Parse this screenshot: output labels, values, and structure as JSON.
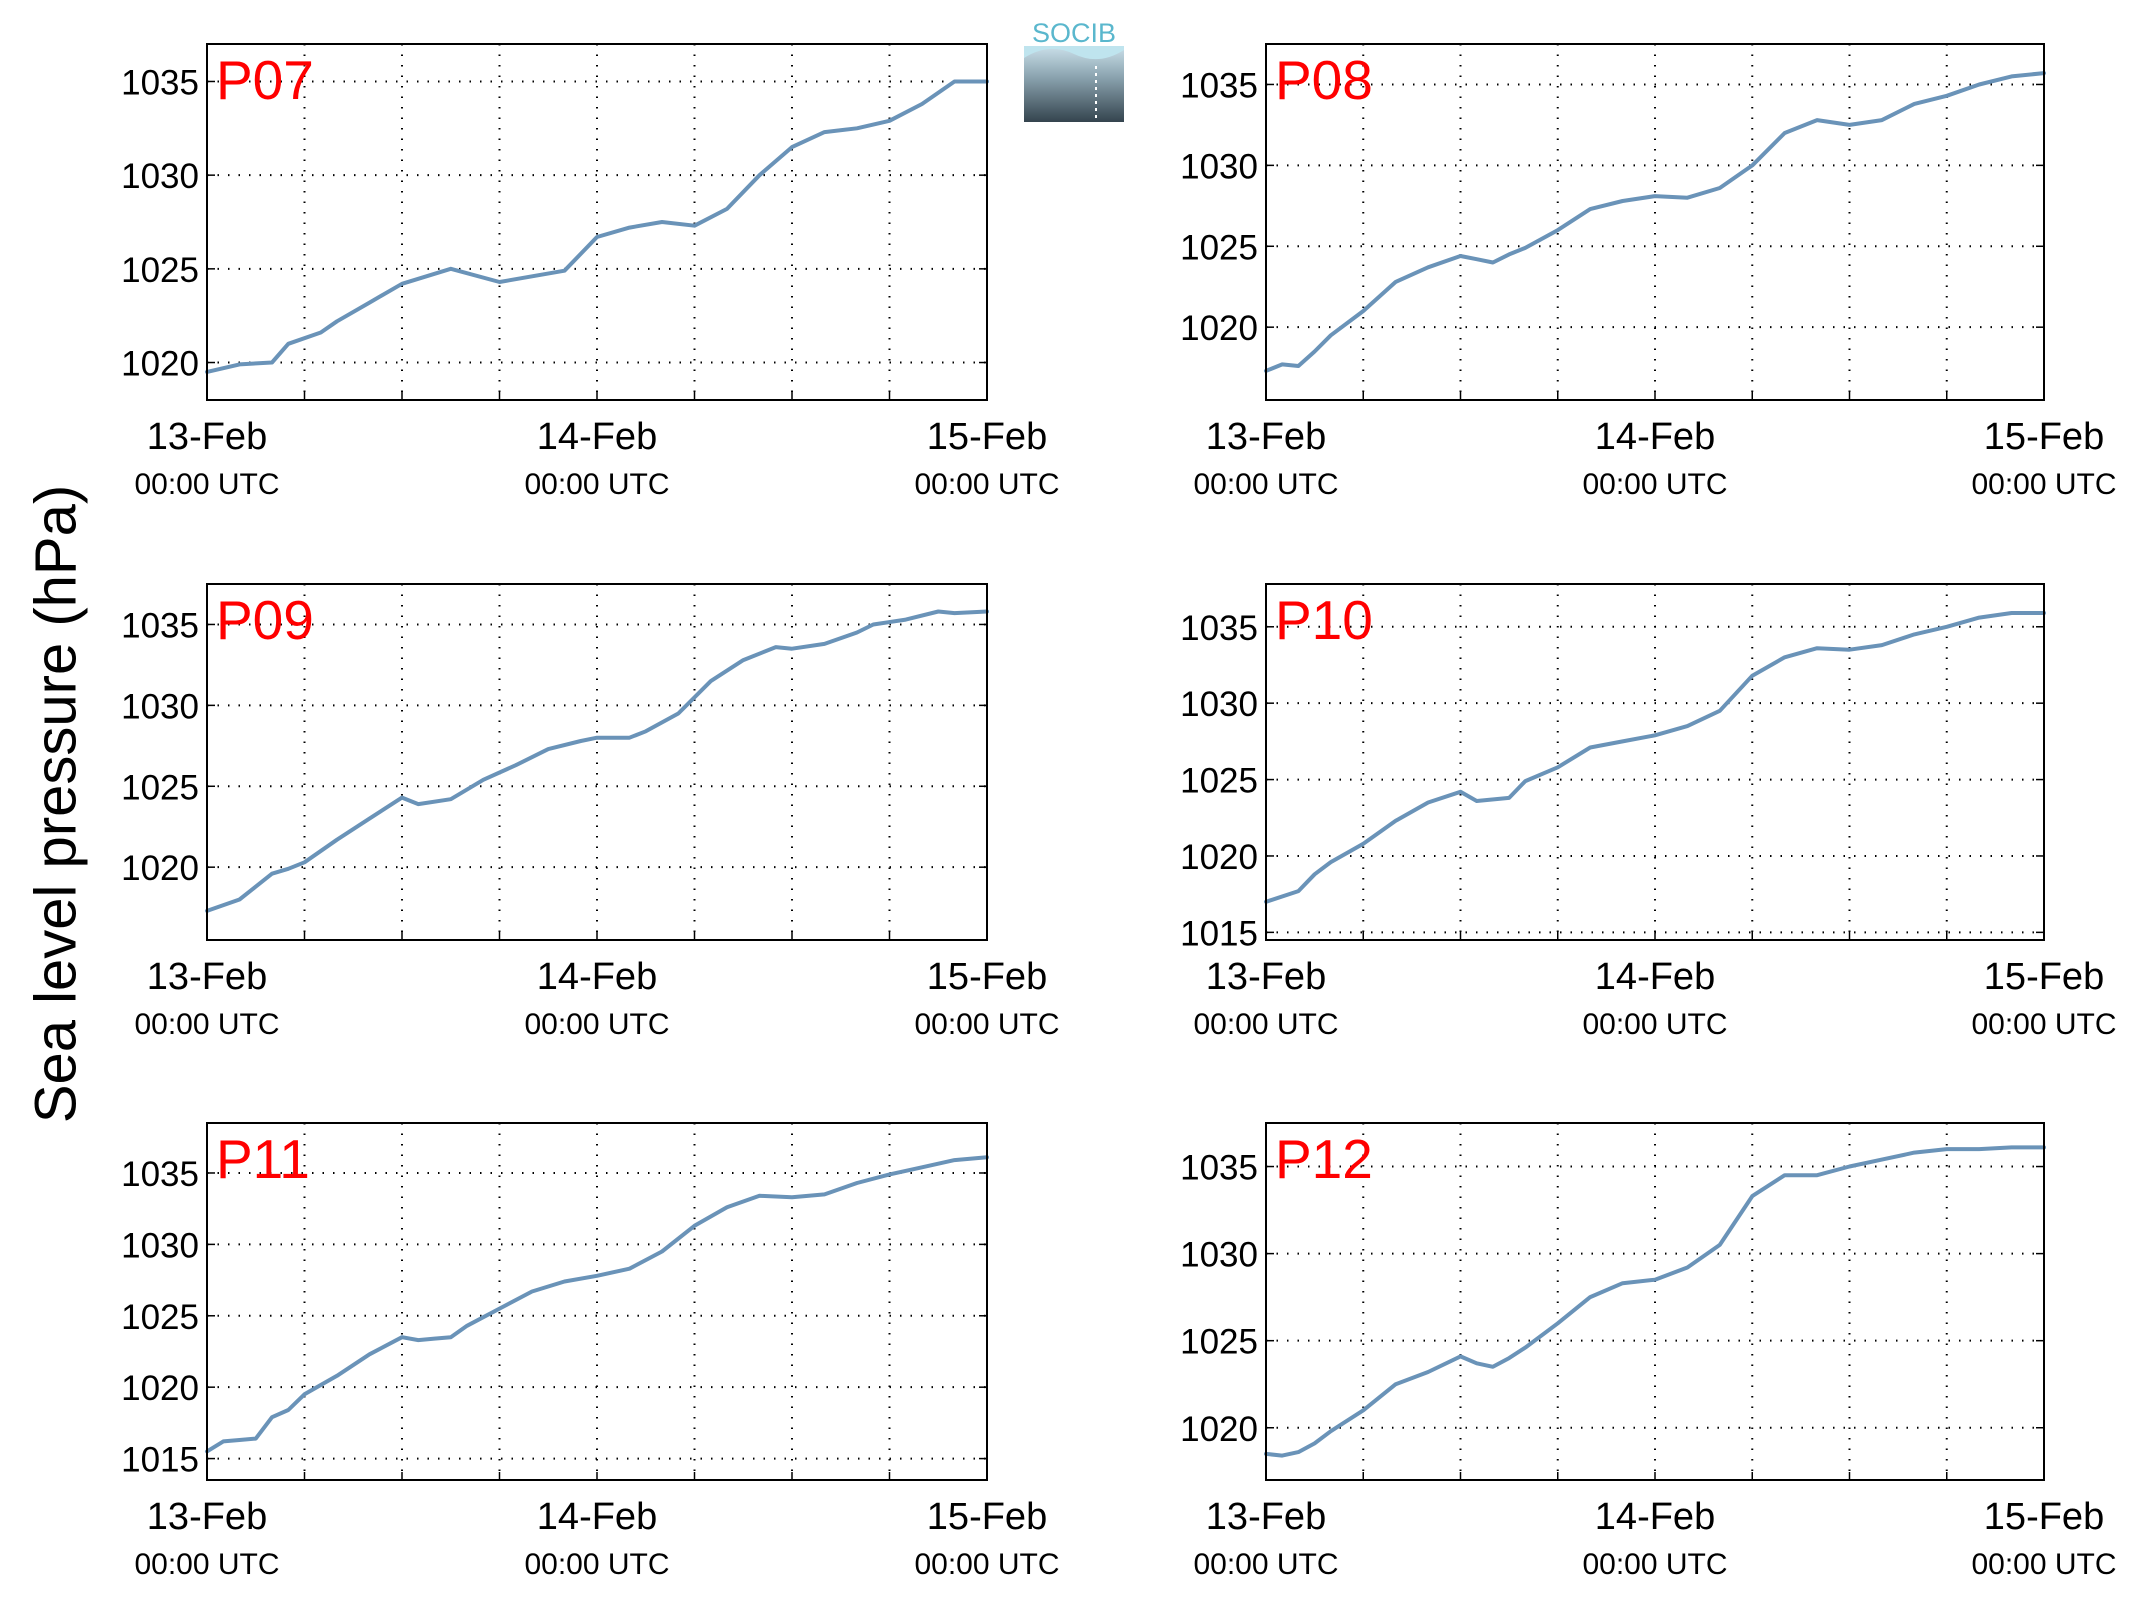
{
  "figure": {
    "y_axis_label": "Sea level pressure (hPa)",
    "logo_text": "SOCIB",
    "line_color": "#6a93b8",
    "panel_label_color": "#ff0000"
  },
  "chart_data": [
    {
      "type": "line",
      "panel_label": "P07",
      "x_ticks": [
        "13-Feb 00:00 UTC",
        "14-Feb 00:00 UTC",
        "15-Feb 00:00 UTC"
      ],
      "x_range": [
        "13-Feb 00:00 UTC",
        "15-Feb 00:00 UTC"
      ],
      "ylim": [
        1018,
        1037
      ],
      "y_ticks": [
        1020,
        1025,
        1030,
        1035
      ],
      "grid": true,
      "x_hours": [
        0,
        2,
        4,
        5,
        7,
        8,
        10,
        12,
        15,
        18,
        22,
        24,
        26,
        28,
        30,
        32,
        34,
        36,
        38,
        40,
        42,
        44,
        46,
        48
      ],
      "y": [
        1019.5,
        1019.9,
        1020.0,
        1021.0,
        1021.6,
        1022.2,
        1023.2,
        1024.2,
        1025.0,
        1024.3,
        1024.9,
        1026.7,
        1027.2,
        1027.5,
        1027.3,
        1028.2,
        1030.0,
        1031.5,
        1032.3,
        1032.5,
        1032.9,
        1033.8,
        1035.0,
        1035.0
      ]
    },
    {
      "type": "line",
      "panel_label": "P08",
      "x_ticks": [
        "13-Feb 00:00 UTC",
        "14-Feb 00:00 UTC",
        "15-Feb 00:00 UTC"
      ],
      "x_range": [
        "13-Feb 00:00 UTC",
        "15-Feb 00:00 UTC"
      ],
      "ylim": [
        1015.5,
        1037.5
      ],
      "y_ticks": [
        1020,
        1025,
        1030,
        1035
      ],
      "grid": true,
      "x_hours": [
        0,
        1,
        2,
        3,
        4,
        6,
        8,
        10,
        12,
        13,
        14,
        15,
        16,
        18,
        20,
        22,
        24,
        26,
        28,
        30,
        32,
        34,
        36,
        38,
        40,
        42,
        44,
        46,
        48
      ],
      "y": [
        1017.3,
        1017.7,
        1017.6,
        1018.5,
        1019.5,
        1021.0,
        1022.8,
        1023.7,
        1024.4,
        1024.2,
        1024.0,
        1024.5,
        1024.9,
        1026.0,
        1027.3,
        1027.8,
        1028.1,
        1028.0,
        1028.6,
        1030.0,
        1032.0,
        1032.8,
        1032.5,
        1032.8,
        1033.8,
        1034.3,
        1035.0,
        1035.5,
        1035.7
      ]
    },
    {
      "type": "line",
      "panel_label": "P09",
      "x_ticks": [
        "13-Feb 00:00 UTC",
        "14-Feb 00:00 UTC",
        "15-Feb 00:00 UTC"
      ],
      "x_range": [
        "13-Feb 00:00 UTC",
        "15-Feb 00:00 UTC"
      ],
      "ylim": [
        1015.5,
        1037.5
      ],
      "y_ticks": [
        1020,
        1025,
        1030,
        1035
      ],
      "grid": true,
      "x_hours": [
        0,
        2,
        3,
        4,
        5,
        6,
        8,
        10,
        12,
        13,
        15,
        17,
        19,
        21,
        23,
        24,
        26,
        27,
        29,
        31,
        33,
        35,
        36,
        38,
        40,
        41,
        43,
        45,
        46,
        48
      ],
      "y": [
        1017.3,
        1018.0,
        1018.8,
        1019.6,
        1019.9,
        1020.3,
        1021.7,
        1023.0,
        1024.3,
        1023.9,
        1024.2,
        1025.4,
        1026.3,
        1027.3,
        1027.8,
        1028.0,
        1028.0,
        1028.4,
        1029.5,
        1031.5,
        1032.8,
        1033.6,
        1033.5,
        1033.8,
        1034.5,
        1035.0,
        1035.3,
        1035.8,
        1035.7,
        1035.8
      ]
    },
    {
      "type": "line",
      "panel_label": "P10",
      "x_ticks": [
        "13-Feb 00:00 UTC",
        "14-Feb 00:00 UTC",
        "15-Feb 00:00 UTC"
      ],
      "x_range": [
        "13-Feb 00:00 UTC",
        "15-Feb 00:00 UTC"
      ],
      "ylim": [
        1014.5,
        1037.8
      ],
      "y_ticks": [
        1015,
        1020,
        1025,
        1030,
        1035
      ],
      "grid": true,
      "x_hours": [
        0,
        2,
        3,
        4,
        6,
        8,
        10,
        12,
        13,
        15,
        16,
        18,
        20,
        22,
        24,
        26,
        28,
        30,
        32,
        34,
        36,
        38,
        40,
        42,
        44,
        46,
        48
      ],
      "y": [
        1017.0,
        1017.7,
        1018.8,
        1019.6,
        1020.8,
        1022.3,
        1023.5,
        1024.2,
        1023.6,
        1023.8,
        1024.9,
        1025.8,
        1027.1,
        1027.5,
        1027.9,
        1028.5,
        1029.5,
        1031.8,
        1033.0,
        1033.6,
        1033.5,
        1033.8,
        1034.5,
        1035.0,
        1035.6,
        1035.9,
        1035.9
      ]
    },
    {
      "type": "line",
      "panel_label": "P11",
      "x_ticks": [
        "13-Feb 00:00 UTC",
        "14-Feb 00:00 UTC",
        "15-Feb 00:00 UTC"
      ],
      "x_range": [
        "13-Feb 00:00 UTC",
        "15-Feb 00:00 UTC"
      ],
      "ylim": [
        1013.5,
        1038.5
      ],
      "y_ticks": [
        1015,
        1020,
        1025,
        1030,
        1035
      ],
      "grid": true,
      "x_hours": [
        0,
        1,
        2,
        3,
        4,
        5,
        6,
        8,
        10,
        12,
        13,
        14,
        15,
        16,
        18,
        20,
        22,
        24,
        26,
        28,
        30,
        32,
        34,
        36,
        38,
        40,
        42,
        44,
        46,
        48
      ],
      "y": [
        1015.5,
        1016.2,
        1016.3,
        1016.4,
        1017.9,
        1018.4,
        1019.5,
        1020.8,
        1022.3,
        1023.5,
        1023.3,
        1023.4,
        1023.5,
        1024.3,
        1025.5,
        1026.7,
        1027.4,
        1027.8,
        1028.3,
        1029.5,
        1031.3,
        1032.6,
        1033.4,
        1033.3,
        1033.5,
        1034.3,
        1034.9,
        1035.4,
        1035.9,
        1036.1
      ]
    },
    {
      "type": "line",
      "panel_label": "P12",
      "x_ticks": [
        "13-Feb 00:00 UTC",
        "14-Feb 00:00 UTC",
        "15-Feb 00:00 UTC"
      ],
      "x_range": [
        "13-Feb 00:00 UTC",
        "15-Feb 00:00 UTC"
      ],
      "ylim": [
        1017,
        1037.5
      ],
      "y_ticks": [
        1020,
        1025,
        1030,
        1035
      ],
      "grid": true,
      "x_hours": [
        0,
        1,
        2,
        3,
        4,
        6,
        8,
        10,
        12,
        13,
        14,
        15,
        16,
        18,
        20,
        22,
        24,
        26,
        28,
        30,
        32,
        34,
        36,
        38,
        40,
        42,
        44,
        46,
        48
      ],
      "y": [
        1018.5,
        1018.4,
        1018.6,
        1019.1,
        1019.8,
        1021.0,
        1022.5,
        1023.2,
        1024.1,
        1023.7,
        1023.5,
        1024.0,
        1024.6,
        1026.0,
        1027.5,
        1028.3,
        1028.5,
        1029.2,
        1030.5,
        1033.3,
        1034.5,
        1034.5,
        1035.0,
        1035.4,
        1035.8,
        1036.0,
        1036.0,
        1036.1,
        1036.1
      ]
    }
  ]
}
